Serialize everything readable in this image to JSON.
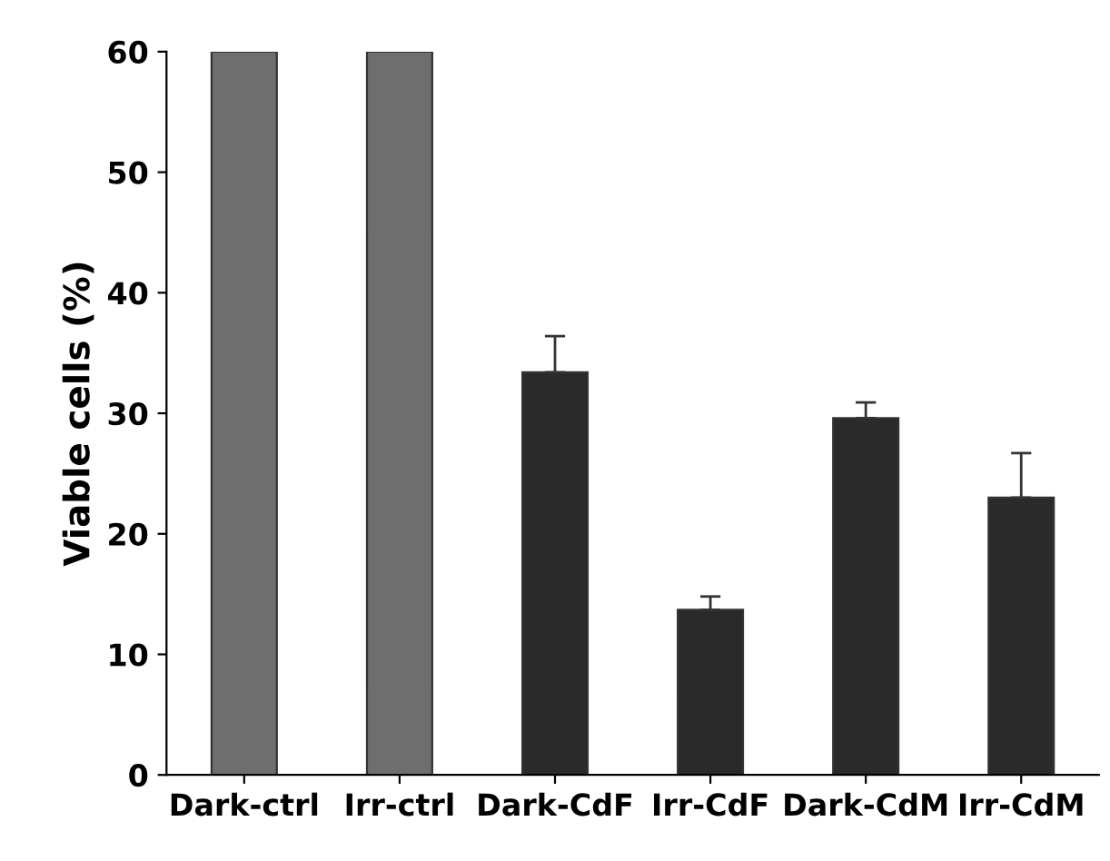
{
  "chart_data": {
    "type": "bar",
    "ylabel": "Viable cells (%)",
    "categories": [
      "Dark-ctrl",
      "Irr-ctrl",
      "Dark-CdF",
      "Irr-CdF",
      "Dark-CdM",
      "Irr-CdM"
    ],
    "values": [
      60,
      60,
      33.4,
      13.7,
      29.6,
      23.0
    ],
    "errors": [
      null,
      null,
      [
        33.4,
        36.4
      ],
      [
        13.7,
        14.8
      ],
      [
        29.6,
        30.9
      ],
      [
        23.0,
        26.7
      ]
    ],
    "colors": [
      "#6e6e6e",
      "#6e6e6e",
      "#2a2a2a",
      "#2a2a2a",
      "#2a2a2a",
      "#2a2a2a"
    ],
    "ylim": [
      0,
      60
    ],
    "yticks": [
      0,
      10,
      20,
      30,
      40,
      50,
      60
    ],
    "grid": false
  }
}
